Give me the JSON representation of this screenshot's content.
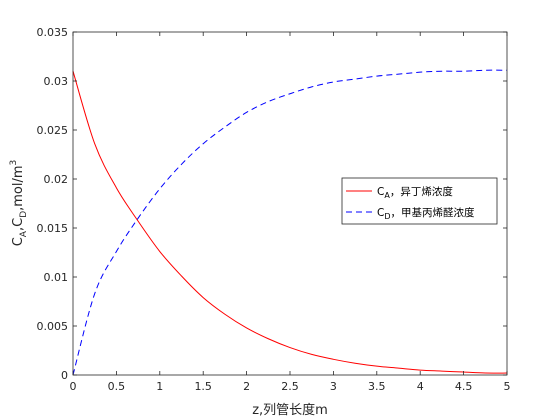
{
  "chart_data": {
    "type": "line",
    "xlabel": "z,列管长度m",
    "ylabel_parts": {
      "c1": "C",
      "a": "A",
      "sep1": ",",
      "c2": "C",
      "d": "D",
      "mid": ",mol/m",
      "exp": "3"
    },
    "xlim": [
      0,
      5
    ],
    "ylim": [
      0,
      0.035
    ],
    "x_ticks": [
      0,
      0.5,
      1,
      1.5,
      2,
      2.5,
      3,
      3.5,
      4,
      4.5,
      5
    ],
    "x_tick_labels": [
      "0",
      "0.5",
      "1",
      "1.5",
      "2",
      "2.5",
      "3",
      "3.5",
      "4",
      "4.5",
      "5"
    ],
    "y_ticks": [
      0,
      0.005,
      0.01,
      0.015,
      0.02,
      0.025,
      0.03,
      0.035
    ],
    "y_tick_labels": [
      "0",
      "0.005",
      "0.01",
      "0.015",
      "0.02",
      "0.025",
      "0.03",
      "0.035"
    ],
    "grid": false,
    "legend_position": "center-right",
    "series": [
      {
        "key": "ca",
        "color": "#ff0000",
        "dash": "solid",
        "legend": {
          "main": "C",
          "sub": "A",
          "suffix": "，异丁烯浓度"
        },
        "x": [
          0,
          0.25,
          0.5,
          0.75,
          1,
          1.25,
          1.5,
          1.75,
          2,
          2.25,
          2.5,
          2.75,
          3,
          3.25,
          3.5,
          3.75,
          4,
          4.25,
          4.5,
          4.75,
          5
        ],
        "y": [
          0.031,
          0.0236,
          0.0191,
          0.0157,
          0.0126,
          0.0101,
          0.0079,
          0.0062,
          0.0048,
          0.0037,
          0.0028,
          0.0021,
          0.0016,
          0.0012,
          0.0009,
          0.0007,
          0.0005,
          0.0004,
          0.0003,
          0.0002,
          0.0002
        ]
      },
      {
        "key": "cd",
        "color": "#0000ff",
        "dash": "dashed",
        "legend": {
          "main": "C",
          "sub": "D",
          "suffix": "，甲基丙烯醛浓度"
        },
        "x": [
          0,
          0.25,
          0.5,
          0.75,
          1,
          1.25,
          1.5,
          1.75,
          2,
          2.25,
          2.5,
          2.75,
          3,
          3.25,
          3.5,
          3.75,
          4,
          4.25,
          4.5,
          4.75,
          5
        ],
        "y": [
          0,
          0.0083,
          0.0126,
          0.016,
          0.019,
          0.0215,
          0.0236,
          0.0253,
          0.0268,
          0.0279,
          0.0287,
          0.0294,
          0.0299,
          0.0302,
          0.0305,
          0.0307,
          0.0309,
          0.031,
          0.031,
          0.0311,
          0.0311
        ]
      }
    ]
  }
}
